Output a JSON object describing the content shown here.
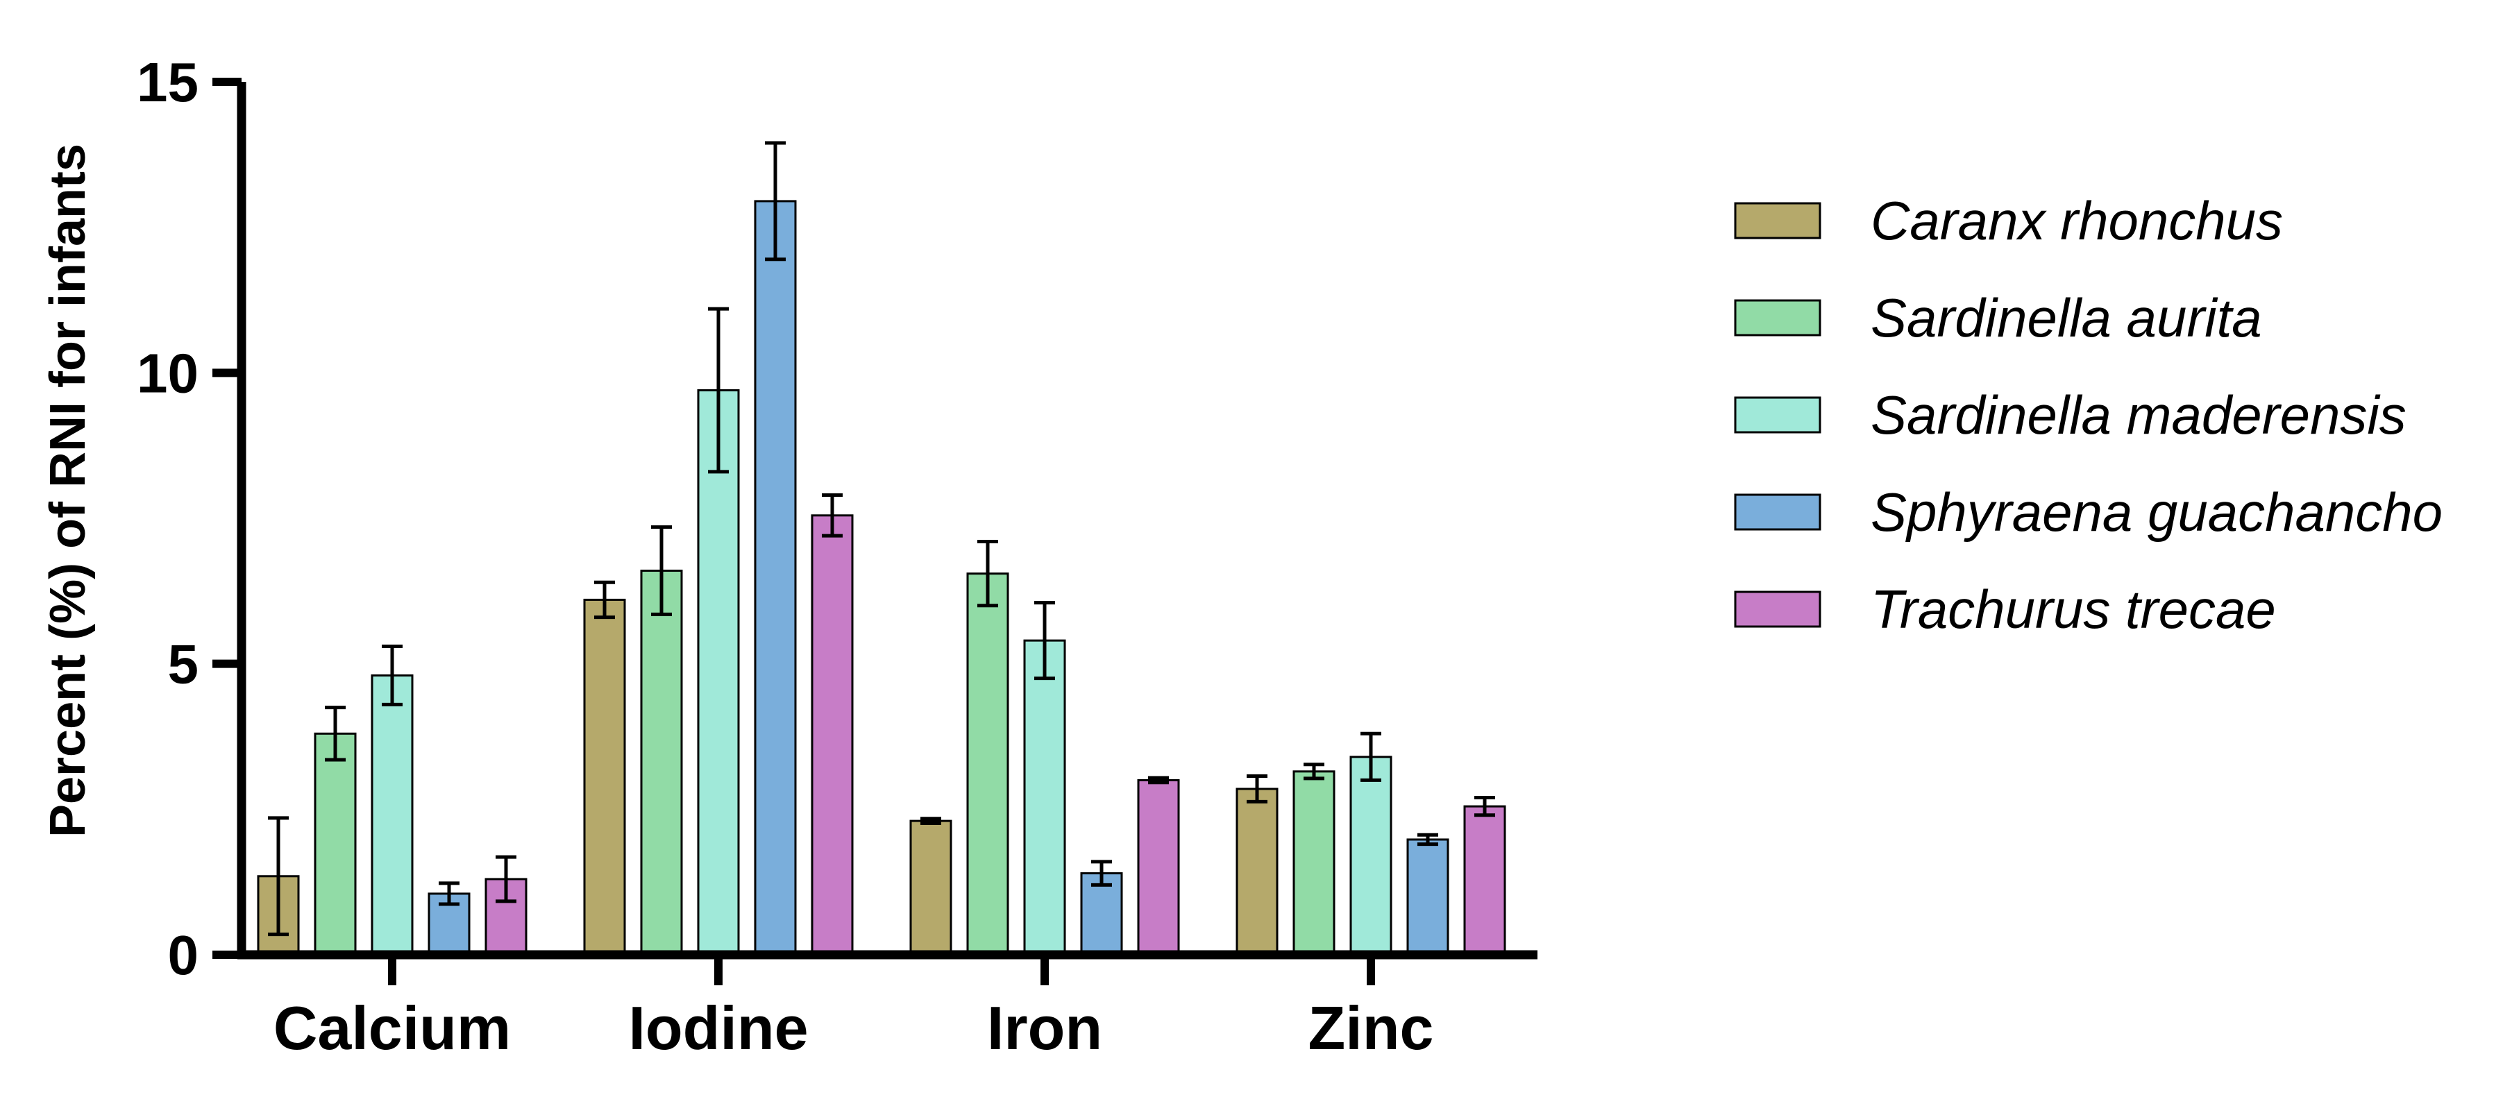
{
  "chart_data": {
    "type": "bar",
    "title": "",
    "xlabel": "",
    "ylabel": "Percent (%) of RNI for infants",
    "ylim": [
      0,
      15
    ],
    "yticks": [
      0,
      5,
      10,
      15
    ],
    "grid": false,
    "legend_position": "right",
    "categories": [
      "Calcium",
      "Iodine",
      "Iron",
      "Zinc"
    ],
    "series": [
      {
        "name": "Caranx rhonchus",
        "color": "#b5a96b",
        "values": [
          1.35,
          6.1,
          2.3,
          2.85
        ],
        "errors": [
          1.0,
          0.3,
          0.04,
          0.22
        ]
      },
      {
        "name": "Sardinella aurita",
        "color": "#91dba6",
        "values": [
          3.8,
          6.6,
          6.55,
          3.15
        ],
        "errors": [
          0.45,
          0.75,
          0.55,
          0.12
        ]
      },
      {
        "name": "Sardinella maderensis",
        "color": "#a0e9d9",
        "values": [
          4.8,
          9.7,
          5.4,
          3.4
        ],
        "errors": [
          0.5,
          1.4,
          0.65,
          0.4
        ]
      },
      {
        "name": "Sphyraena guachancho",
        "color": "#7aaedb",
        "values": [
          1.05,
          12.95,
          1.4,
          1.98
        ],
        "errors": [
          0.18,
          1.0,
          0.2,
          0.08
        ]
      },
      {
        "name": "Trachurus trecae",
        "color": "#c77dc7",
        "values": [
          1.3,
          7.55,
          3.0,
          2.55
        ],
        "errors": [
          0.38,
          0.35,
          0.04,
          0.15
        ]
      }
    ]
  }
}
